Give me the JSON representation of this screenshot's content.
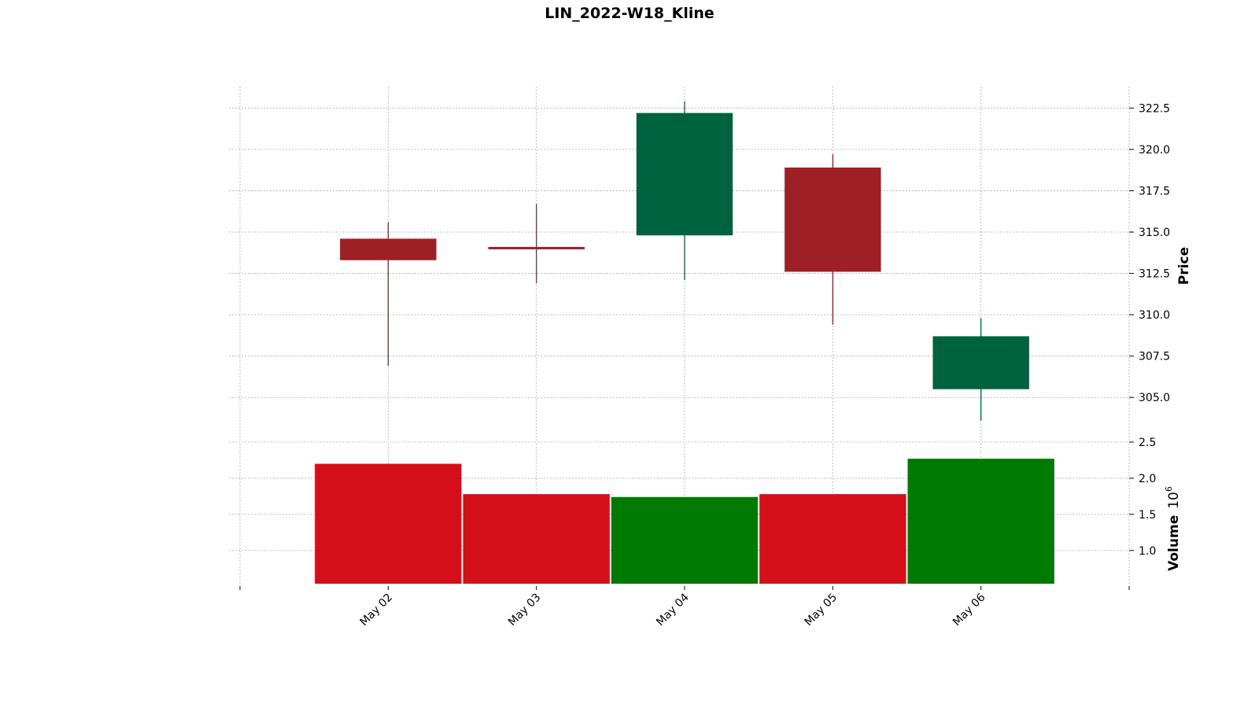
{
  "chart_data": {
    "type": "candlestick",
    "title": "LIN_2022-W18_Kline",
    "categories": [
      "May 02",
      "May 03",
      "May 04",
      "May 05",
      "May 06"
    ],
    "price": {
      "ylabel": "Price",
      "ylim": [
        302.3,
        323.8
      ],
      "ticks": [
        "305.0",
        "307.5",
        "310.0",
        "312.5",
        "315.0",
        "317.5",
        "320.0",
        "322.5"
      ],
      "open": [
        314.6,
        314.1,
        314.8,
        318.9,
        305.5
      ],
      "high": [
        315.6,
        316.7,
        322.9,
        319.7,
        309.8
      ],
      "low": [
        306.9,
        311.9,
        312.1,
        309.4,
        303.6
      ],
      "close": [
        313.3,
        314.0,
        322.2,
        312.6,
        308.7
      ]
    },
    "volume": {
      "ylabel": "Volume",
      "exponent_label": "10",
      "exponent_power": "6",
      "ylim": [
        0.54,
        2.5
      ],
      "ticks": [
        "1.0",
        "1.5",
        "2.0",
        "2.5"
      ],
      "values": [
        2.2,
        1.78,
        1.74,
        1.78,
        2.27
      ]
    },
    "grid": true,
    "colors": {
      "up_candle": "#006340",
      "down_candle": "#9e1f26",
      "up_volume": "#007a00",
      "down_volume": "#d50f19"
    }
  }
}
